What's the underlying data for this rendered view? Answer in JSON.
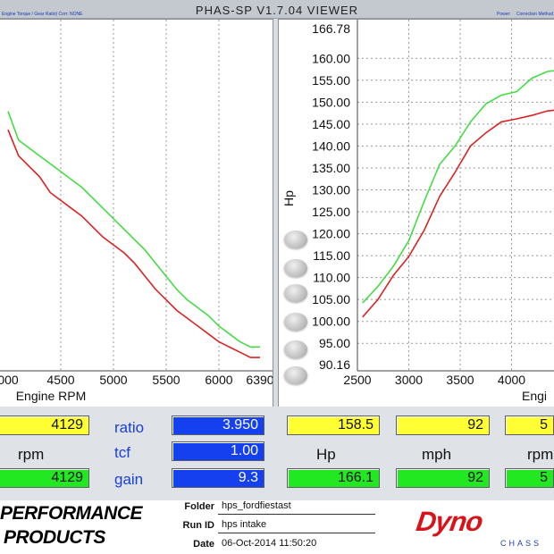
{
  "header": {
    "title": "PHAS-SP V1.7.04 VIEWER",
    "left_note": "Engine Torque / Gear Ratio)   Corr: NONE",
    "right_note_1": "Power:",
    "right_note_2": "Correction Method"
  },
  "left_chart": {
    "xlabel": "Engine RPM",
    "x_ticks": [
      "000",
      "4500",
      "5000",
      "5500",
      "6000",
      "6390"
    ]
  },
  "right_chart": {
    "ylabel": "Hp",
    "xlabel": "Engi",
    "y_ticks": [
      "166.78",
      "160.00",
      "155.00",
      "150.00",
      "145.00",
      "140.00",
      "135.00",
      "130.00",
      "125.00",
      "120.00",
      "115.00",
      "110.00",
      "105.00",
      "100.00",
      "95.00",
      "90.16"
    ],
    "x_ticks": [
      "2500",
      "3000",
      "3500",
      "4000",
      "4"
    ]
  },
  "chart_data": [
    {
      "type": "line",
      "title": "",
      "xlabel": "Engine RPM",
      "ylabel": "",
      "xlim": [
        4000,
        6390
      ],
      "x": [
        4000,
        4100,
        4200,
        4300,
        4400,
        4500,
        4600,
        4700,
        4800,
        4900,
        5000,
        5100,
        5200,
        5300,
        5400,
        5500,
        5600,
        5700,
        5800,
        5900,
        6000,
        6100,
        6200,
        6300,
        6390
      ],
      "series": [
        {
          "name": "",
          "color": "#44dd44",
          "values_rel": [
            0.95,
            0.84,
            0.81,
            0.78,
            0.75,
            0.72,
            0.69,
            0.66,
            0.62,
            0.58,
            0.54,
            0.5,
            0.46,
            0.42,
            0.37,
            0.32,
            0.27,
            0.23,
            0.2,
            0.17,
            0.13,
            0.1,
            0.07,
            0.05,
            0.05
          ]
        },
        {
          "name": "",
          "color": "#dd2222",
          "values_rel": [
            0.88,
            0.78,
            0.74,
            0.7,
            0.64,
            0.61,
            0.58,
            0.55,
            0.51,
            0.47,
            0.44,
            0.41,
            0.37,
            0.32,
            0.27,
            0.23,
            0.19,
            0.16,
            0.13,
            0.1,
            0.07,
            0.05,
            0.03,
            0.01,
            0.01
          ]
        }
      ]
    },
    {
      "type": "line",
      "title": "",
      "xlabel": "Engi",
      "ylabel": "Hp",
      "ylim": [
        90.16,
        166.78
      ],
      "x": [
        2550,
        2700,
        2850,
        3000,
        3150,
        3300,
        3450,
        3600,
        3750,
        3900,
        4050,
        4200,
        4350,
        4500
      ],
      "series": [
        {
          "name": "",
          "color": "#44dd44",
          "values": [
            104.2,
            108.0,
            112.6,
            118.4,
            127.4,
            135.8,
            140.0,
            145.5,
            149.6,
            151.6,
            152.4,
            155.5,
            157.0,
            157.4
          ]
        },
        {
          "name": "",
          "color": "#dd2222",
          "values": [
            101.0,
            105.0,
            110.5,
            114.8,
            120.8,
            128.5,
            134.0,
            140.0,
            143.0,
            145.5,
            146.2,
            147.0,
            148.0,
            148.4
          ]
        }
      ]
    }
  ],
  "readouts": {
    "rpm_top": "4129",
    "rpm_label": "rpm",
    "rpm_bottom": "4129",
    "ratio_label": "ratio",
    "ratio_value": "3.950",
    "tcf_label": "tcf",
    "tcf_value": "1.00",
    "gain_label": "gain",
    "gain_value": "9.3",
    "hp_top": "158.5",
    "hp_label": "Hp",
    "hp_bottom": "166.1",
    "mph_top": "92",
    "mph_label": "mph",
    "mph_bottom": "92",
    "rpm2_top": "5",
    "rpm2_label": "rpm",
    "rpm2_bottom": "5"
  },
  "footer": {
    "brand_line1": "PERFORMANCE",
    "brand_line2": "PRODUCTS",
    "folder_label": "Folder",
    "folder_value": "hps_fordfiestast",
    "run_label": "Run ID",
    "run_value": "hps intake",
    "date_label": "Date",
    "date_value": "06-Oct-2014   11:50:20",
    "logo_text": "Dyno",
    "logo_sub": "CHASS"
  },
  "colors": {
    "green_trace": "#44dd44",
    "red_trace": "#dd2222",
    "yellow_box": "#ffff33",
    "green_box": "#22e822",
    "blue_box": "#1440f0"
  }
}
